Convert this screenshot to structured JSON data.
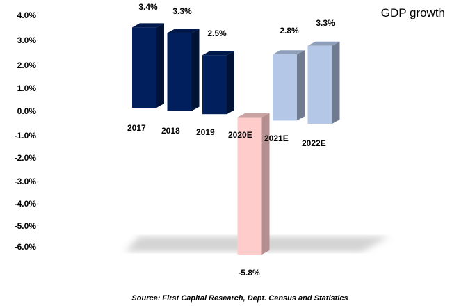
{
  "chart_data": {
    "type": "bar",
    "title": "GDP growth",
    "categories": [
      "2017",
      "2018",
      "2019",
      "2020E",
      "2021E",
      "2022E"
    ],
    "values": [
      3.4,
      3.3,
      2.5,
      -5.8,
      2.8,
      3.3
    ],
    "value_labels": [
      "3.4%",
      "3.3%",
      "2.5%",
      "-5.8%",
      "2.8%",
      "3.3%"
    ],
    "yticks": [
      "4.0%",
      "3.0%",
      "2.0%",
      "1.0%",
      "0.0%",
      "-1.0%",
      "-2.0%",
      "-3.0%",
      "-4.0%",
      "-5.0%",
      "-6.0%"
    ],
    "ylim": [
      -6,
      4
    ],
    "xlabel": "",
    "ylabel": "",
    "grid": false,
    "colors": {
      "actual": "#001f5c",
      "negative": "#ffcccc",
      "estimate": "#b4c7e7"
    },
    "source": "Source: First Capital Research, Dept. Census and Statistics"
  }
}
